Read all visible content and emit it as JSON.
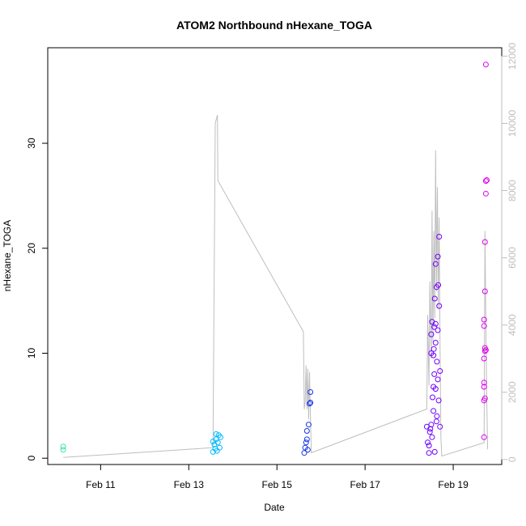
{
  "chart_data": {
    "type": "scatter",
    "title": "ATOM2 Northbound nHexane_TOGA",
    "xlabel": "Date",
    "ylabel": "nHexane_TOGA",
    "xlim": [
      9.8,
      20.1
    ],
    "ylim": [
      -0.6,
      39.1
    ],
    "y2lim": [
      -150,
      12250
    ],
    "x_ticks": [
      {
        "value": 11,
        "label": "Feb 11"
      },
      {
        "value": 13,
        "label": "Feb 13"
      },
      {
        "value": 15,
        "label": "Feb 15"
      },
      {
        "value": 17,
        "label": "Feb 17"
      },
      {
        "value": 19,
        "label": "Feb 19"
      }
    ],
    "y_ticks": [
      0,
      10,
      20,
      30
    ],
    "y2_ticks": [
      0,
      2000,
      4000,
      6000,
      8000,
      10000,
      12000
    ],
    "point_color_scale": "by date, teal to cyan to blue to purple to magenta",
    "series": [
      {
        "name": "nHexane_TOGA",
        "kind": "points",
        "points": [
          [
            10.15,
            0.8
          ],
          [
            10.15,
            1.1
          ],
          [
            13.55,
            0.6
          ],
          [
            13.58,
            1.3
          ],
          [
            13.6,
            0.9
          ],
          [
            13.62,
            1.8
          ],
          [
            13.64,
            0.7
          ],
          [
            13.66,
            1.5
          ],
          [
            13.68,
            2.2
          ],
          [
            13.7,
            1.0
          ],
          [
            13.72,
            2.0
          ],
          [
            13.55,
            1.6
          ],
          [
            13.62,
            2.3
          ],
          [
            15.62,
            0.5
          ],
          [
            15.64,
            1.0
          ],
          [
            15.66,
            1.5
          ],
          [
            15.68,
            2.6
          ],
          [
            15.7,
            0.8
          ],
          [
            15.72,
            3.2
          ],
          [
            15.68,
            1.8
          ],
          [
            15.74,
            5.2
          ],
          [
            15.76,
            5.3
          ],
          [
            15.76,
            6.3
          ],
          [
            18.4,
            3.0
          ],
          [
            18.42,
            1.5
          ],
          [
            18.45,
            0.5
          ],
          [
            18.47,
            2.5
          ],
          [
            18.5,
            3.2
          ],
          [
            18.5,
            10.0
          ],
          [
            18.52,
            13.0
          ],
          [
            18.55,
            4.5
          ],
          [
            18.55,
            6.8
          ],
          [
            18.57,
            8.0
          ],
          [
            18.58,
            15.2
          ],
          [
            18.6,
            11.0
          ],
          [
            18.6,
            12.8
          ],
          [
            18.62,
            16.3
          ],
          [
            18.63,
            9.2
          ],
          [
            18.65,
            12.2
          ],
          [
            18.65,
            19.2
          ],
          [
            18.67,
            5.5
          ],
          [
            18.68,
            21.1
          ],
          [
            18.7,
            8.3
          ],
          [
            18.52,
            2.0
          ],
          [
            18.58,
            0.6
          ],
          [
            18.62,
            3.5
          ],
          [
            18.45,
            1.2
          ],
          [
            18.48,
            2.8
          ],
          [
            18.55,
            9.8
          ],
          [
            18.6,
            18.5
          ],
          [
            18.65,
            7.5
          ],
          [
            18.68,
            14.5
          ],
          [
            18.5,
            11.8
          ],
          [
            18.57,
            12.5
          ],
          [
            18.6,
            6.6
          ],
          [
            18.63,
            4.0
          ],
          [
            18.66,
            16.5
          ],
          [
            18.7,
            3.0
          ],
          [
            18.53,
            5.8
          ],
          [
            18.56,
            10.4
          ],
          [
            19.7,
            2.0
          ],
          [
            19.7,
            5.5
          ],
          [
            19.72,
            5.7
          ],
          [
            19.7,
            7.2
          ],
          [
            19.7,
            6.8
          ],
          [
            19.7,
            9.5
          ],
          [
            19.72,
            10.2
          ],
          [
            19.72,
            10.5
          ],
          [
            19.74,
            10.3
          ],
          [
            19.7,
            12.6
          ],
          [
            19.7,
            13.2
          ],
          [
            19.72,
            15.9
          ],
          [
            19.72,
            20.6
          ],
          [
            19.74,
            25.2
          ],
          [
            19.74,
            26.4
          ],
          [
            19.76,
            26.5
          ],
          [
            19.74,
            37.5
          ]
        ]
      },
      {
        "name": "secondary trace (right axis)",
        "kind": "line",
        "color": "#bebebe",
        "points": [
          [
            10.15,
            60
          ],
          [
            13.55,
            350
          ],
          [
            13.6,
            10000
          ],
          [
            13.63,
            10150
          ],
          [
            13.65,
            10250
          ],
          [
            13.66,
            8300
          ],
          [
            15.6,
            3800
          ],
          [
            15.62,
            1500
          ],
          [
            15.64,
            1700
          ],
          [
            15.66,
            2800
          ],
          [
            15.68,
            1500
          ],
          [
            15.7,
            2700
          ],
          [
            15.72,
            1200
          ],
          [
            15.74,
            2600
          ],
          [
            15.76,
            1300
          ],
          [
            15.78,
            200
          ],
          [
            18.4,
            1500
          ],
          [
            18.42,
            4300
          ],
          [
            18.45,
            2200
          ],
          [
            18.47,
            5300
          ],
          [
            18.5,
            3000
          ],
          [
            18.52,
            7400
          ],
          [
            18.54,
            3500
          ],
          [
            18.56,
            6800
          ],
          [
            18.58,
            4200
          ],
          [
            18.6,
            9200
          ],
          [
            18.62,
            5000
          ],
          [
            18.64,
            8100
          ],
          [
            18.66,
            4500
          ],
          [
            18.68,
            7200
          ],
          [
            18.7,
            3600
          ],
          [
            18.72,
            700
          ],
          [
            18.74,
            100
          ],
          [
            19.7,
            500
          ],
          [
            19.72,
            6800
          ],
          [
            19.74,
            4000
          ],
          [
            19.76,
            1800
          ],
          [
            19.78,
            300
          ]
        ]
      }
    ]
  }
}
